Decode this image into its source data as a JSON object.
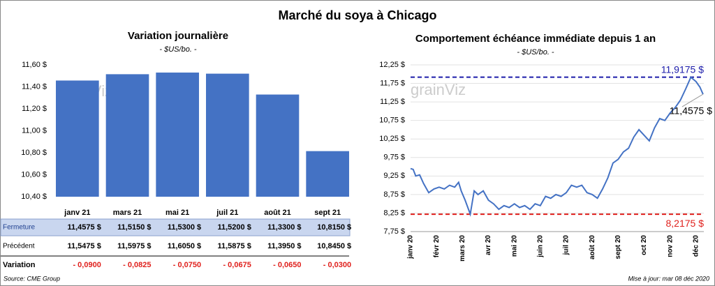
{
  "title": "Marché du soya à Chicago",
  "source": "Source: CME Group",
  "updated": "Mise à jour: mar 08 déc 2020",
  "watermark": "grainViz",
  "chart_data": [
    {
      "type": "bar",
      "title": "Variation journalière",
      "subtitle": "- $US/bo. -",
      "categories": [
        "janv 21",
        "mars 21",
        "mai 21",
        "juil 21",
        "août 21",
        "sept 21"
      ],
      "values": [
        11.4575,
        11.515,
        11.53,
        11.52,
        11.33,
        10.815
      ],
      "color": "#4472c4",
      "grid": false,
      "ylim": [
        10.4,
        11.6
      ],
      "yticks": [
        {
          "value": 10.4,
          "label": "10,40 $"
        },
        {
          "value": 10.6,
          "label": "10,60 $"
        },
        {
          "value": 10.8,
          "label": "10,80 $"
        },
        {
          "value": 11.0,
          "label": "11,00 $"
        },
        {
          "value": 11.2,
          "label": "11,20 $"
        },
        {
          "value": 11.4,
          "label": "11,40 $"
        },
        {
          "value": 11.6,
          "label": "11,60 $"
        }
      ]
    },
    {
      "type": "line",
      "title": "Comportement  échéance immédiate depuis 1 an",
      "subtitle": "- $US/bo. -",
      "color": "#4472c4",
      "grid": true,
      "x": [
        0,
        0.1,
        0.2,
        0.35,
        0.5,
        0.7,
        0.9,
        1.1,
        1.3,
        1.5,
        1.7,
        1.85,
        1.95,
        2.1,
        2.3,
        2.45,
        2.6,
        2.8,
        3.0,
        3.2,
        3.4,
        3.6,
        3.8,
        4.0,
        4.2,
        4.4,
        4.6,
        4.8,
        5.0,
        5.2,
        5.4,
        5.6,
        5.8,
        6.0,
        6.2,
        6.4,
        6.6,
        6.8,
        7.0,
        7.2,
        7.4,
        7.6,
        7.8,
        8.0,
        8.2,
        8.4,
        8.6,
        8.8,
        9.0,
        9.2,
        9.4,
        9.6,
        9.8,
        10.0,
        10.2,
        10.4,
        10.6,
        10.8,
        11.0,
        11.15,
        11.27
      ],
      "values": [
        9.45,
        9.43,
        9.25,
        9.28,
        9.05,
        8.8,
        8.9,
        8.95,
        8.9,
        9.0,
        8.95,
        9.08,
        8.85,
        8.6,
        8.22,
        8.85,
        8.75,
        8.85,
        8.6,
        8.5,
        8.35,
        8.45,
        8.4,
        8.5,
        8.4,
        8.45,
        8.35,
        8.5,
        8.45,
        8.7,
        8.65,
        8.75,
        8.7,
        8.8,
        9.0,
        8.95,
        9.0,
        8.8,
        8.75,
        8.65,
        8.9,
        9.2,
        9.6,
        9.7,
        9.9,
        10.0,
        10.3,
        10.5,
        10.35,
        10.2,
        10.55,
        10.8,
        10.75,
        10.95,
        11.1,
        11.3,
        11.6,
        11.9175,
        11.8,
        11.65,
        11.4575
      ],
      "end_label": "11,4575 $",
      "xlim": [
        0,
        11.3
      ],
      "xticks": [
        {
          "value": 0,
          "label": "janv 20"
        },
        {
          "value": 1,
          "label": "févr 20"
        },
        {
          "value": 2,
          "label": "mars 20"
        },
        {
          "value": 3,
          "label": "avr 20"
        },
        {
          "value": 4,
          "label": "mai 20"
        },
        {
          "value": 5,
          "label": "juin 20"
        },
        {
          "value": 6,
          "label": "juil 20"
        },
        {
          "value": 7,
          "label": "août 20"
        },
        {
          "value": 8,
          "label": "sept 20"
        },
        {
          "value": 9,
          "label": "oct 20"
        },
        {
          "value": 10,
          "label": "nov 20"
        },
        {
          "value": 11,
          "label": "déc 20"
        }
      ],
      "ylim": [
        7.75,
        12.25
      ],
      "yticks": [
        {
          "value": 7.75,
          "label": "7,75 $"
        },
        {
          "value": 8.25,
          "label": "8,25 $"
        },
        {
          "value": 8.75,
          "label": "8,75 $"
        },
        {
          "value": 9.25,
          "label": "9,25 $"
        },
        {
          "value": 9.75,
          "label": "9,75 $"
        },
        {
          "value": 10.25,
          "label": "10,25 $"
        },
        {
          "value": 10.75,
          "label": "10,75 $"
        },
        {
          "value": 11.25,
          "label": "11,25 $"
        },
        {
          "value": 11.75,
          "label": "11,75 $"
        },
        {
          "value": 12.25,
          "label": "12,25 $"
        }
      ],
      "hlines": [
        {
          "value": 11.9175,
          "label": "11,9175 $",
          "color": "#1c1caa"
        },
        {
          "value": 8.2175,
          "label": "8,2175 $",
          "color": "#e0201c"
        }
      ]
    }
  ],
  "table": {
    "rows": [
      [
        "Fermeture",
        "11,4575 $",
        "11,5150 $",
        "11,5300 $",
        "11,5200 $",
        "11,3300 $",
        "10,8150 $"
      ],
      [
        "Précédent",
        "11,5475 $",
        "11,5975 $",
        "11,6050 $",
        "11,5875 $",
        "11,3950 $",
        "10,8450 $"
      ],
      [
        "Variation",
        "- 0,0900",
        "- 0,0825",
        "- 0,0750",
        "- 0,0675",
        "- 0,0650",
        "- 0,0300"
      ]
    ]
  }
}
